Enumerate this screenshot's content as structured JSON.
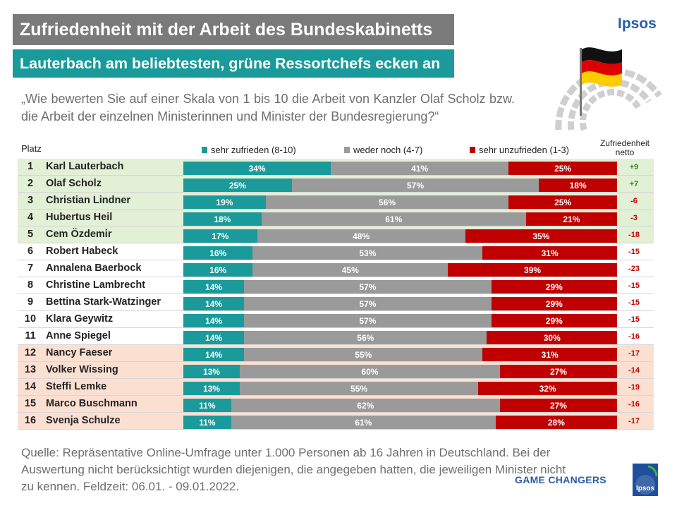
{
  "header": {
    "title": "Zufriedenheit mit der Arbeit des Bundeskabinetts",
    "subtitle": "Lauterbach am beliebtesten, grüne Ressortchefs ecken an",
    "question": "„Wie bewerten Sie auf einer Skala von 1 bis 10 die Arbeit von Kanzler Olaf Scholz bzw. die Arbeit der einzelnen Ministerinnen und Minister der Bundesregierung?“",
    "brand": "Ipsos"
  },
  "columns": {
    "rank": "Platz",
    "netto": "Zufriedenheit netto"
  },
  "colors": {
    "satisfied": "#1a9a9a",
    "neutral": "#9a9a9a",
    "unsatisfied": "#c00000",
    "top_band": "#e2f0d6",
    "bottom_band": "#fbe0d2",
    "net_positive": "#2e8b1e",
    "net_negative": "#c00000"
  },
  "chart_data": {
    "type": "bar",
    "orientation": "horizontal",
    "stacked": "percent",
    "legend": [
      {
        "key": "satisfied",
        "label": "sehr zufrieden (8-10)"
      },
      {
        "key": "neutral",
        "label": "weder noch (4-7)"
      },
      {
        "key": "unsatisfied",
        "label": "sehr unzufrieden (1-3)"
      }
    ],
    "rows": [
      {
        "rank": "1",
        "name": "Karl Lauterbach",
        "satisfied": 34,
        "neutral": 41,
        "unsatisfied": 25,
        "net": "+9",
        "band": "top"
      },
      {
        "rank": "2",
        "name": "Olaf Scholz",
        "satisfied": 25,
        "neutral": 57,
        "unsatisfied": 18,
        "net": "+7",
        "band": "top"
      },
      {
        "rank": "3",
        "name": "Christian Lindner",
        "satisfied": 19,
        "neutral": 56,
        "unsatisfied": 25,
        "net": "-6",
        "band": "top"
      },
      {
        "rank": "4",
        "name": "Hubertus Heil",
        "satisfied": 18,
        "neutral": 61,
        "unsatisfied": 21,
        "net": "-3",
        "band": "top"
      },
      {
        "rank": "5",
        "name": "Cem Özdemir",
        "satisfied": 17,
        "neutral": 48,
        "unsatisfied": 35,
        "net": "-18",
        "band": "top"
      },
      {
        "rank": "6",
        "name": "Robert Habeck",
        "satisfied": 16,
        "neutral": 53,
        "unsatisfied": 31,
        "net": "-15",
        "band": "mid"
      },
      {
        "rank": "7",
        "name": "Annalena Baerbock",
        "satisfied": 16,
        "neutral": 45,
        "unsatisfied": 39,
        "net": "-23",
        "band": "mid"
      },
      {
        "rank": "8",
        "name": "Christine Lambrecht",
        "satisfied": 14,
        "neutral": 57,
        "unsatisfied": 29,
        "net": "-15",
        "band": "mid"
      },
      {
        "rank": "9",
        "name": "Bettina Stark-Watzinger",
        "satisfied": 14,
        "neutral": 57,
        "unsatisfied": 29,
        "net": "-15",
        "band": "mid"
      },
      {
        "rank": "10",
        "name": "Klara Geywitz",
        "satisfied": 14,
        "neutral": 57,
        "unsatisfied": 29,
        "net": "-15",
        "band": "mid"
      },
      {
        "rank": "11",
        "name": "Anne Spiegel",
        "satisfied": 14,
        "neutral": 56,
        "unsatisfied": 30,
        "net": "-16",
        "band": "mid"
      },
      {
        "rank": "12",
        "name": "Nancy Faeser",
        "satisfied": 14,
        "neutral": 55,
        "unsatisfied": 31,
        "net": "-17",
        "band": "bottom"
      },
      {
        "rank": "13",
        "name": "Volker Wissing",
        "satisfied": 13,
        "neutral": 60,
        "unsatisfied": 27,
        "net": "-14",
        "band": "bottom"
      },
      {
        "rank": "14",
        "name": "Steffi Lemke",
        "satisfied": 13,
        "neutral": 55,
        "unsatisfied": 32,
        "net": "-19",
        "band": "bottom"
      },
      {
        "rank": "15",
        "name": "Marco Buschmann",
        "satisfied": 11,
        "neutral": 62,
        "unsatisfied": 27,
        "net": "-16",
        "band": "bottom"
      },
      {
        "rank": "16",
        "name": "Svenja Schulze",
        "satisfied": 11,
        "neutral": 61,
        "unsatisfied": 28,
        "net": "-17",
        "band": "bottom"
      }
    ]
  },
  "footer": {
    "source": "Quelle: Repräsentative Online-Umfrage unter 1.000 Personen ab 16 Jahren in Deutschland. Bei der Auswertung nicht berücksichtigt wurden diejenigen, die angegeben hatten, die jeweiligen Minister nicht zu kennen. Feldzeit: 06.01. - 09.01.2022.",
    "tagline": "GAME CHANGERS",
    "logo_text": "Ipsos"
  }
}
